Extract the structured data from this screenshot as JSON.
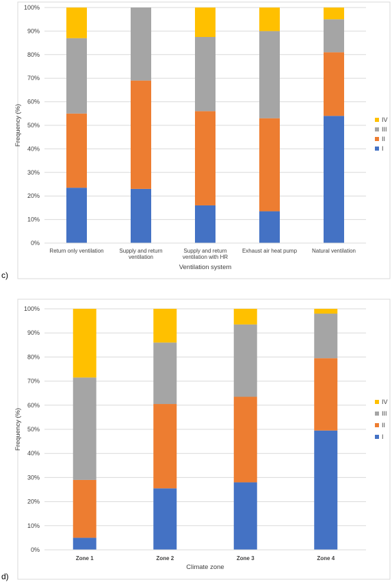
{
  "chart_data": [
    {
      "type": "bar",
      "stacked": true,
      "panel_label": "c)",
      "xlabel": "Ventilation system",
      "ylabel": "Frequency (%)",
      "ylim": [
        0,
        100
      ],
      "yticks": [
        "0%",
        "10%",
        "20%",
        "30%",
        "40%",
        "50%",
        "60%",
        "70%",
        "80%",
        "90%",
        "100%"
      ],
      "grid": "horizontal",
      "legend_position": "right",
      "categories": [
        [
          "Return only ventilation"
        ],
        [
          "Supply and return",
          "ventilation"
        ],
        [
          "Supply and return",
          "ventilation with HR"
        ],
        [
          "Exhaust air heat pump"
        ],
        [
          "Natural ventilation"
        ]
      ],
      "series": [
        {
          "name": "I",
          "color": "#4472C4",
          "values": [
            23.5,
            23,
            16,
            13.5,
            54
          ]
        },
        {
          "name": "II",
          "color": "#ED7D31",
          "values": [
            31.5,
            46,
            40,
            39.5,
            27
          ]
        },
        {
          "name": "III",
          "color": "#A5A5A5",
          "values": [
            32,
            31,
            31.5,
            37,
            14
          ]
        },
        {
          "name": "IV",
          "color": "#FFC000",
          "values": [
            13,
            0,
            12.5,
            10,
            5
          ]
        }
      ]
    },
    {
      "type": "bar",
      "stacked": true,
      "panel_label": "d)",
      "xlabel": "Climate zone",
      "ylabel": "Frequency (%)",
      "ylim": [
        0,
        100
      ],
      "yticks": [
        "0%",
        "10%",
        "20%",
        "30%",
        "40%",
        "50%",
        "60%",
        "70%",
        "80%",
        "90%",
        "100%"
      ],
      "grid": "horizontal",
      "legend_position": "right",
      "categories": [
        [
          "Zone 1"
        ],
        [
          "Zone 2"
        ],
        [
          "Zone 3"
        ],
        [
          "Zone 4"
        ]
      ],
      "series": [
        {
          "name": "I",
          "color": "#4472C4",
          "values": [
            5,
            25.5,
            28,
            49.5
          ]
        },
        {
          "name": "II",
          "color": "#ED7D31",
          "values": [
            24,
            35,
            35.5,
            30
          ]
        },
        {
          "name": "III",
          "color": "#A5A5A5",
          "values": [
            42.5,
            25.5,
            30,
            18.5
          ]
        },
        {
          "name": "IV",
          "color": "#FFC000",
          "values": [
            28.5,
            14,
            6.5,
            2
          ]
        }
      ]
    }
  ]
}
